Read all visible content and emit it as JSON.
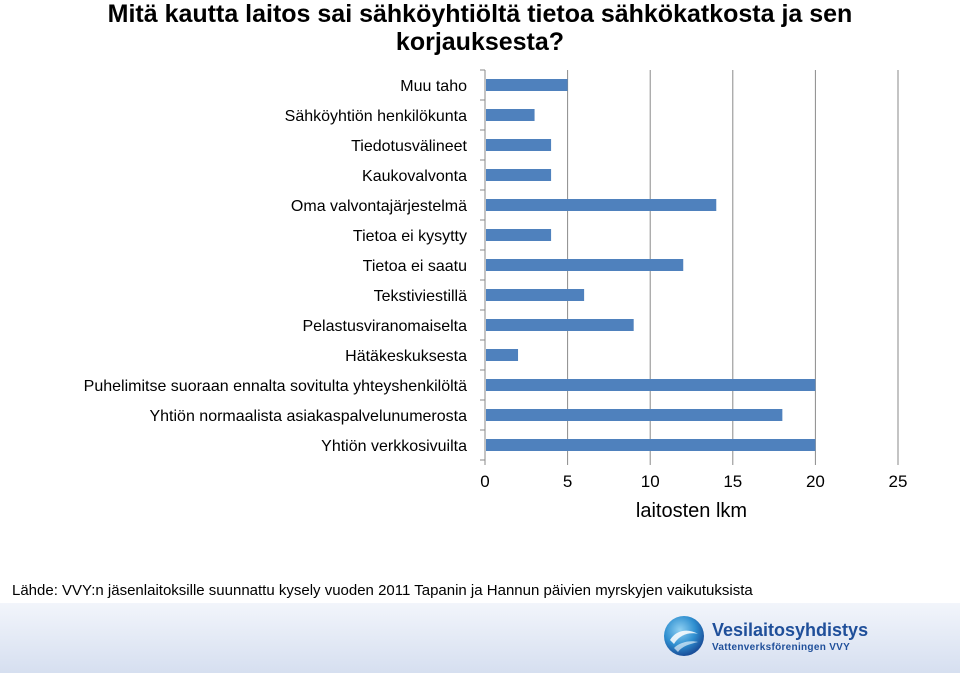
{
  "title": {
    "line1": "Mitä kautta laitos sai sähköyhtiöltä tietoa sähkökatkosta ja sen",
    "line2": "korjauksesta?"
  },
  "chart_data": {
    "type": "bar",
    "orientation": "horizontal",
    "categories": [
      "Muu taho",
      "Sähköyhtiön henkilökunta",
      "Tiedotusvälineet",
      "Kaukovalvonta",
      "Oma valvontajärjestelmä",
      "Tietoa ei kysytty",
      "Tietoa ei saatu",
      "Tekstiviestillä",
      "Pelastusviranomaiselta",
      "Hätäkeskuksesta",
      "Puhelimitse suoraan ennalta sovitulta yhteyshenkilöltä",
      "Yhtiön normaalista asiakaspalvelunumerosta",
      "Yhtiön verkkosivuilta"
    ],
    "values": [
      5,
      3,
      4,
      4,
      14,
      4,
      12,
      6,
      9,
      2,
      20,
      18,
      20
    ],
    "xlabel": "laitosten lkm",
    "xlim": [
      0,
      25
    ],
    "xticks": [
      "0",
      "5",
      "10",
      "15",
      "20",
      "25"
    ],
    "grid": "vertical",
    "bar_color": "#4f81bd"
  },
  "source_text": "Lähde: VVY:n jäsenlaitoksille suunnattu kysely vuoden 2011 Tapanin ja Hannun päivien myrskyjen vaikutuksista",
  "logo": {
    "name": "Vesilaitosyhdistys",
    "subtitle": "Vattenverksföreningen VVY"
  }
}
